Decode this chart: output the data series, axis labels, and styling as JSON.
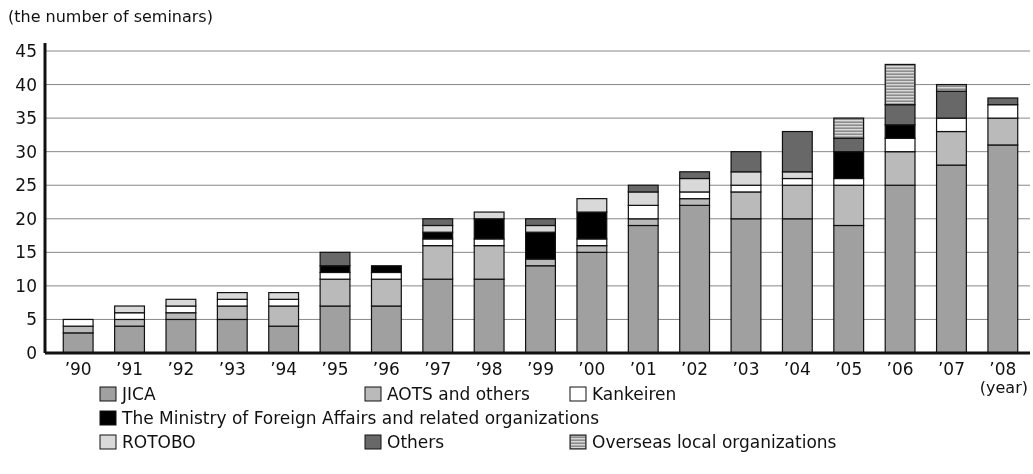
{
  "chart_data": {
    "type": "bar",
    "stacked": true,
    "ylabel": "(the number of seminars)",
    "xlabel": "(year)",
    "categories": [
      "’90",
      "’91",
      "’92",
      "’93",
      "’94",
      "’95",
      "’96",
      "’97",
      "’98",
      "’99",
      "’00",
      "’01",
      "’02",
      "’03",
      "’04",
      "’05",
      "’06",
      "’07",
      "’08"
    ],
    "series": [
      {
        "name": "JICA",
        "color": "#a0a0a0",
        "values": [
          3,
          4,
          5,
          5,
          4,
          7,
          7,
          11,
          11,
          13,
          15,
          19,
          22,
          20,
          20,
          19,
          25,
          28,
          31
        ]
      },
      {
        "name": "AOTS and others",
        "color": "#bababa",
        "values": [
          1,
          1,
          1,
          2,
          3,
          4,
          4,
          5,
          5,
          1,
          1,
          1,
          1,
          4,
          5,
          6,
          5,
          5,
          4
        ]
      },
      {
        "name": "Kankeiren",
        "color": "#ffffff",
        "values": [
          1,
          1,
          1,
          1,
          1,
          1,
          1,
          1,
          1,
          0,
          1,
          2,
          1,
          1,
          1,
          1,
          2,
          2,
          2
        ]
      },
      {
        "name": "The Ministry of Foreign Affairs and related organizations",
        "color": "#000000",
        "values": [
          0,
          0,
          0,
          0,
          0,
          1,
          1,
          1,
          3,
          4,
          4,
          0,
          0,
          0,
          0,
          4,
          2,
          0,
          0
        ]
      },
      {
        "name": "ROTOBO",
        "color": "#d9d9d9",
        "values": [
          0,
          1,
          1,
          1,
          1,
          0,
          0,
          1,
          1,
          1,
          2,
          2,
          2,
          2,
          1,
          0,
          0,
          0,
          0
        ]
      },
      {
        "name": "Others",
        "color": "#686868",
        "values": [
          0,
          0,
          0,
          0,
          0,
          2,
          0,
          1,
          0,
          1,
          0,
          1,
          1,
          3,
          6,
          2,
          3,
          4,
          1
        ]
      },
      {
        "name": "Overseas local organizations",
        "color": "#8c8c8c",
        "values": [
          0,
          0,
          0,
          0,
          0,
          0,
          0,
          0,
          0,
          0,
          0,
          0,
          0,
          0,
          0,
          3,
          6,
          1,
          0
        ]
      }
    ],
    "ylim": [
      0,
      45
    ],
    "yticks": [
      0,
      5,
      10,
      15,
      20,
      25,
      30,
      35,
      40,
      45
    ],
    "grid": "y",
    "legend": "bottom"
  }
}
